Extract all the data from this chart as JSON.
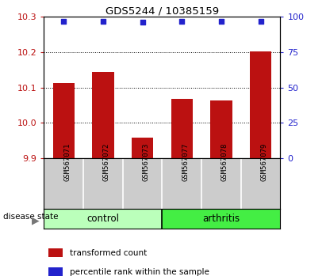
{
  "title": "GDS5244 / 10385159",
  "categories": [
    "GSM567071",
    "GSM567072",
    "GSM567073",
    "GSM567077",
    "GSM567078",
    "GSM567079"
  ],
  "bar_values": [
    10.113,
    10.143,
    9.958,
    10.068,
    10.063,
    10.202
  ],
  "percentile_values": [
    97,
    97,
    96,
    97,
    97,
    97
  ],
  "ylim_left": [
    9.9,
    10.3
  ],
  "ylim_right": [
    0,
    100
  ],
  "yticks_left": [
    9.9,
    10.0,
    10.1,
    10.2,
    10.3
  ],
  "yticks_right": [
    0,
    25,
    50,
    75,
    100
  ],
  "bar_color": "#bb1111",
  "dot_color": "#2222cc",
  "bar_width": 0.55,
  "control_color": "#bbffbb",
  "arthritis_color": "#44ee44",
  "label_area_color": "#cccccc",
  "disease_label": "disease state",
  "control_label": "control",
  "arthritis_label": "arthritis",
  "legend_bar_label": "transformed count",
  "legend_dot_label": "percentile rank within the sample",
  "dotted_line_color": "#000000"
}
